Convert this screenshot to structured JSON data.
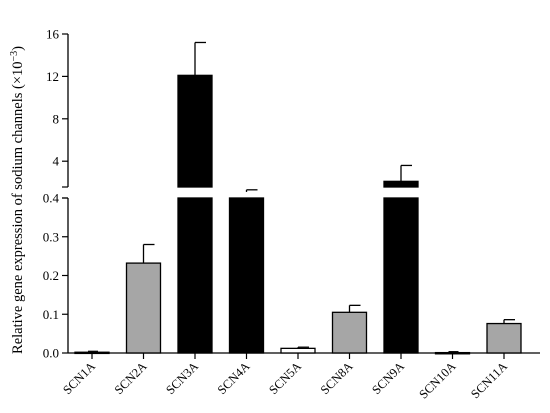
{
  "chart_data": {
    "type": "bar",
    "title": "",
    "xlabel": "",
    "ylabel": "Relative gene expression of sodium channels (×10",
    "ylabel_superscript": "−3",
    "ylabel_suffix": ")",
    "y_axis_break": true,
    "y_lower_range": [
      0,
      0.4
    ],
    "y_upper_range": [
      0,
      16
    ],
    "y_lower_ticks": [
      "0.0",
      "0.1",
      "0.2",
      "0.3",
      "0.4"
    ],
    "y_upper_ticks": [
      "4",
      "8",
      "12",
      "16"
    ],
    "categories": [
      "SCN1A",
      "SCN2A",
      "SCN3A",
      "SCN4A",
      "SCN5A",
      "SCN8A",
      "SCN9A",
      "SCN10A",
      "SCN11A"
    ],
    "values": [
      0.002,
      0.232,
      12.1,
      1.1,
      0.012,
      0.105,
      2.1,
      0.001,
      0.076
    ],
    "errors": [
      0.001,
      0.048,
      3.1,
      0.2,
      0.003,
      0.018,
      1.5,
      0.0005,
      0.01
    ],
    "bar_colors": [
      "#ffffff",
      "#a6a6a6",
      "#000000",
      "#000000",
      "#ffffff",
      "#a6a6a6",
      "#000000",
      "#ffffff",
      "#a6a6a6"
    ],
    "grid": false,
    "legend": "none"
  }
}
